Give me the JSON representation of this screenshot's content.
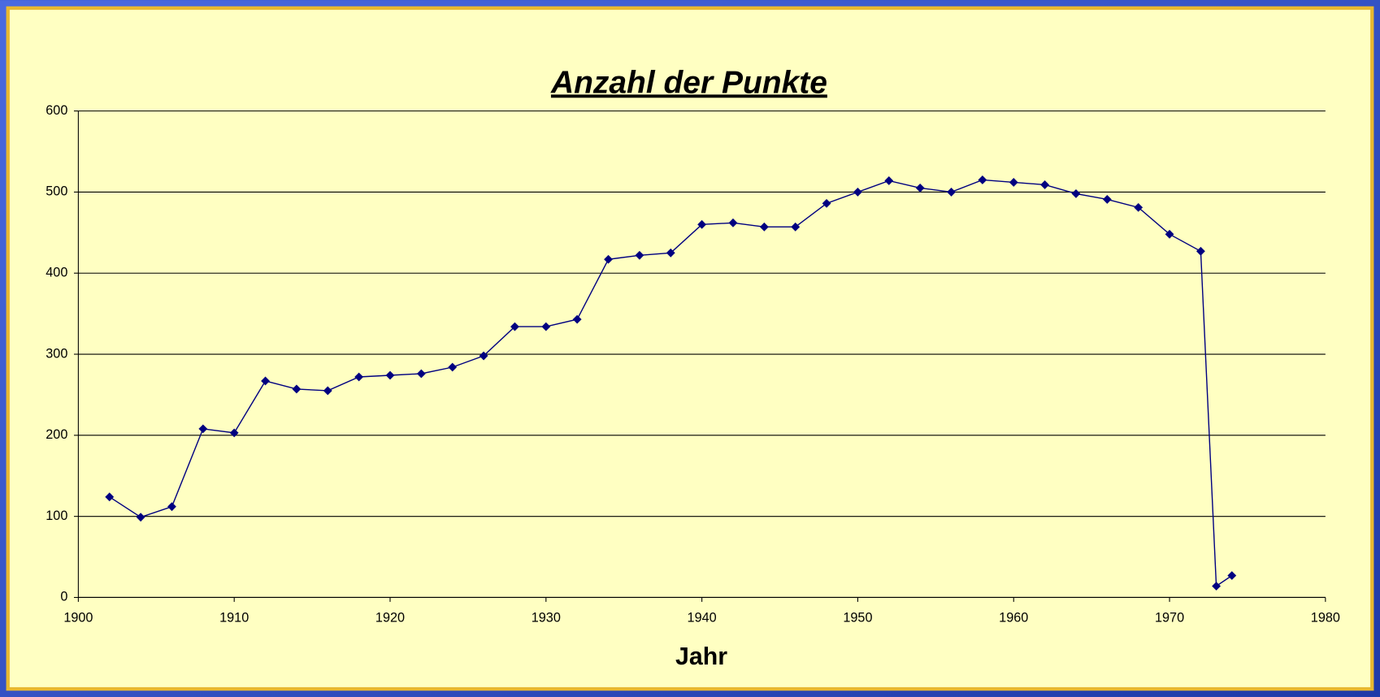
{
  "chart_data": {
    "type": "line",
    "title": "Anzahl der Punkte",
    "x_label": "Jahr",
    "x": [
      1902,
      1904,
      1906,
      1908,
      1910,
      1912,
      1914,
      1916,
      1918,
      1920,
      1922,
      1924,
      1926,
      1928,
      1930,
      1932,
      1934,
      1936,
      1938,
      1940,
      1942,
      1944,
      1946,
      1948,
      1950,
      1952,
      1954,
      1956,
      1958,
      1960,
      1962,
      1964,
      1966,
      1968,
      1970,
      1972,
      1973,
      1974
    ],
    "series": [
      {
        "name": "Anzahl der Punkte",
        "color": "#000080",
        "values": [
          124,
          99,
          112,
          208,
          203,
          267,
          257,
          255,
          272,
          274,
          276,
          284,
          298,
          334,
          334,
          343,
          417,
          422,
          425,
          460,
          462,
          457,
          457,
          486,
          500,
          514,
          505,
          500,
          515,
          512,
          509,
          498,
          491,
          481,
          448,
          427,
          14,
          27
        ]
      }
    ],
    "xlim": [
      1900,
      1980
    ],
    "xticks": [
      1900,
      1910,
      1920,
      1930,
      1940,
      1950,
      1960,
      1970,
      1980
    ],
    "ylim": [
      0,
      600
    ],
    "yticks": [
      0,
      100,
      200,
      300,
      400,
      500,
      600
    ],
    "grid": true
  }
}
